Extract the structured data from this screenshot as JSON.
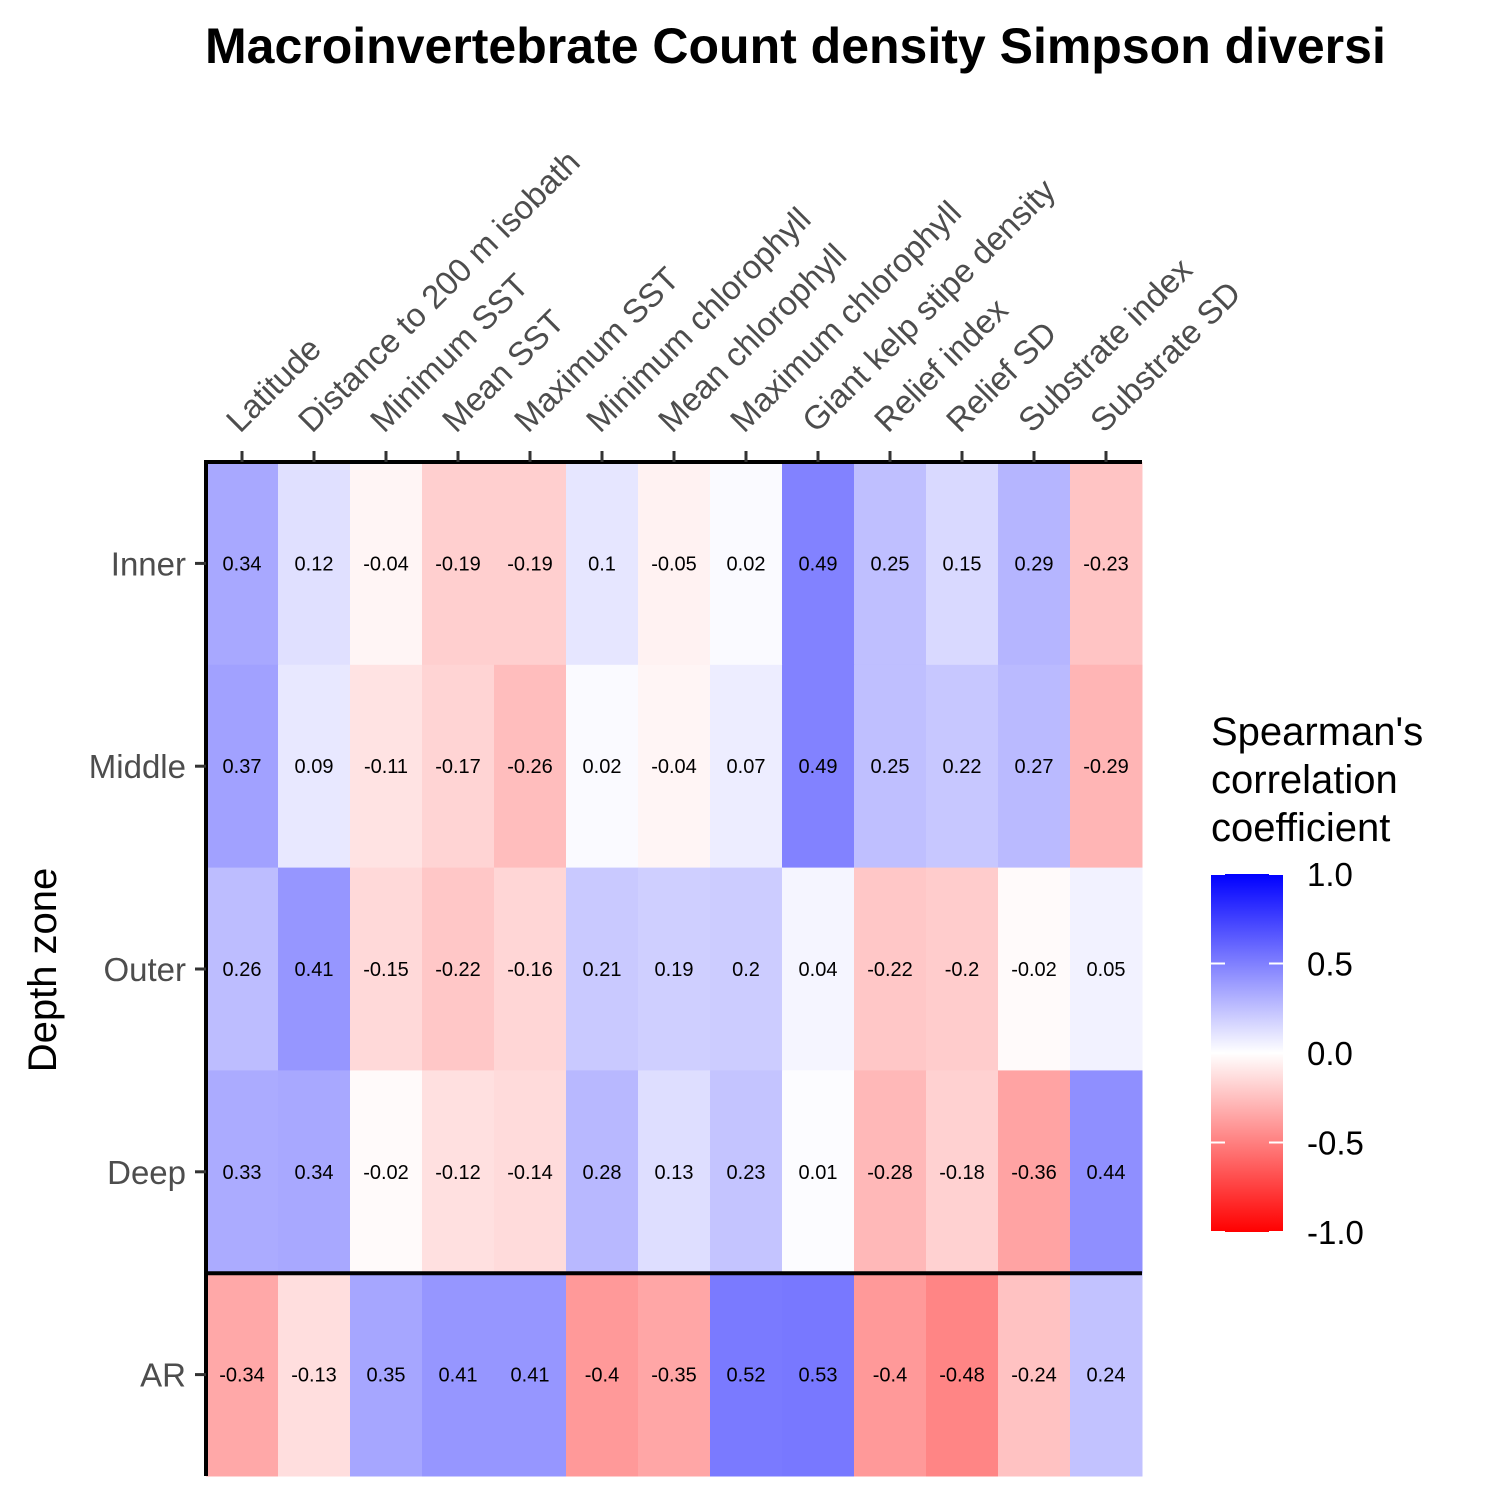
{
  "chart_data": {
    "type": "heatmap",
    "title": "Macroinvertebrate Count density Simpson diversi",
    "ylabel": "Depth zone",
    "xlabel": "",
    "x_categories": [
      "Latitude",
      "Distance to 200 m isobath",
      "Minimum SST",
      "Mean SST",
      "Maximum SST",
      "Minimum chlorophyll",
      "Mean chlorophyll",
      "Maximum chlorophyll",
      "Giant kelp stipe density",
      "Relief index",
      "Relief SD",
      "Substrate index",
      "Substrate SD"
    ],
    "y_categories": [
      "Inner",
      "Middle",
      "Outer",
      "Deep",
      "AR"
    ],
    "values": [
      [
        0.34,
        0.12,
        -0.04,
        -0.19,
        -0.19,
        0.1,
        -0.05,
        0.02,
        0.49,
        0.25,
        0.15,
        0.29,
        -0.23
      ],
      [
        0.37,
        0.09,
        -0.11,
        -0.17,
        -0.26,
        0.02,
        -0.04,
        0.07,
        0.49,
        0.25,
        0.22,
        0.27,
        -0.29
      ],
      [
        0.26,
        0.41,
        -0.15,
        -0.22,
        -0.16,
        0.21,
        0.19,
        0.2,
        0.04,
        -0.22,
        -0.2,
        -0.02,
        0.05
      ],
      [
        0.33,
        0.34,
        -0.02,
        -0.12,
        -0.14,
        0.28,
        0.13,
        0.23,
        0.01,
        -0.28,
        -0.18,
        -0.36,
        0.44
      ],
      [
        -0.34,
        -0.13,
        0.35,
        0.41,
        0.41,
        -0.4,
        -0.35,
        0.52,
        0.53,
        -0.4,
        -0.48,
        -0.24,
        0.24
      ]
    ],
    "value_labels": [
      [
        "0.34",
        "0.12",
        "-0.04",
        "-0.19",
        "-0.19",
        "0.1",
        "-0.05",
        "0.02",
        "0.49",
        "0.25",
        "0.15",
        "0.29",
        "-0.23"
      ],
      [
        "0.37",
        "0.09",
        "-0.11",
        "-0.17",
        "-0.26",
        "0.02",
        "-0.04",
        "0.07",
        "0.49",
        "0.25",
        "0.22",
        "0.27",
        "-0.29"
      ],
      [
        "0.26",
        "0.41",
        "-0.15",
        "-0.22",
        "-0.16",
        "0.21",
        "0.19",
        "0.2",
        "0.04",
        "-0.22",
        "-0.2",
        "-0.02",
        "0.05"
      ],
      [
        "0.33",
        "0.34",
        "-0.02",
        "-0.12",
        "-0.14",
        "0.28",
        "0.13",
        "0.23",
        "0.01",
        "-0.28",
        "-0.18",
        "-0.36",
        "0.44"
      ],
      [
        "-0.34",
        "-0.13",
        "0.35",
        "0.41",
        "0.41",
        "-0.4",
        "-0.35",
        "0.52",
        "0.53",
        "-0.4",
        "-0.48",
        "-0.24",
        "0.24"
      ]
    ],
    "legend": {
      "title_lines": [
        "Spearman's",
        "correlation",
        "coefficient"
      ],
      "ticks": [
        1.0,
        0.5,
        0.0,
        -0.5,
        -1.0
      ],
      "tick_labels": [
        "1.0",
        "0.5",
        "0.0",
        "-0.5",
        "-1.0"
      ],
      "range": [
        -1,
        1
      ],
      "colors": {
        "low": "#ff0000",
        "mid": "#ffffff",
        "high": "#0000ff"
      },
      "placement": "right"
    },
    "separator_after_row": "Deep",
    "x_axis_position": "top"
  }
}
